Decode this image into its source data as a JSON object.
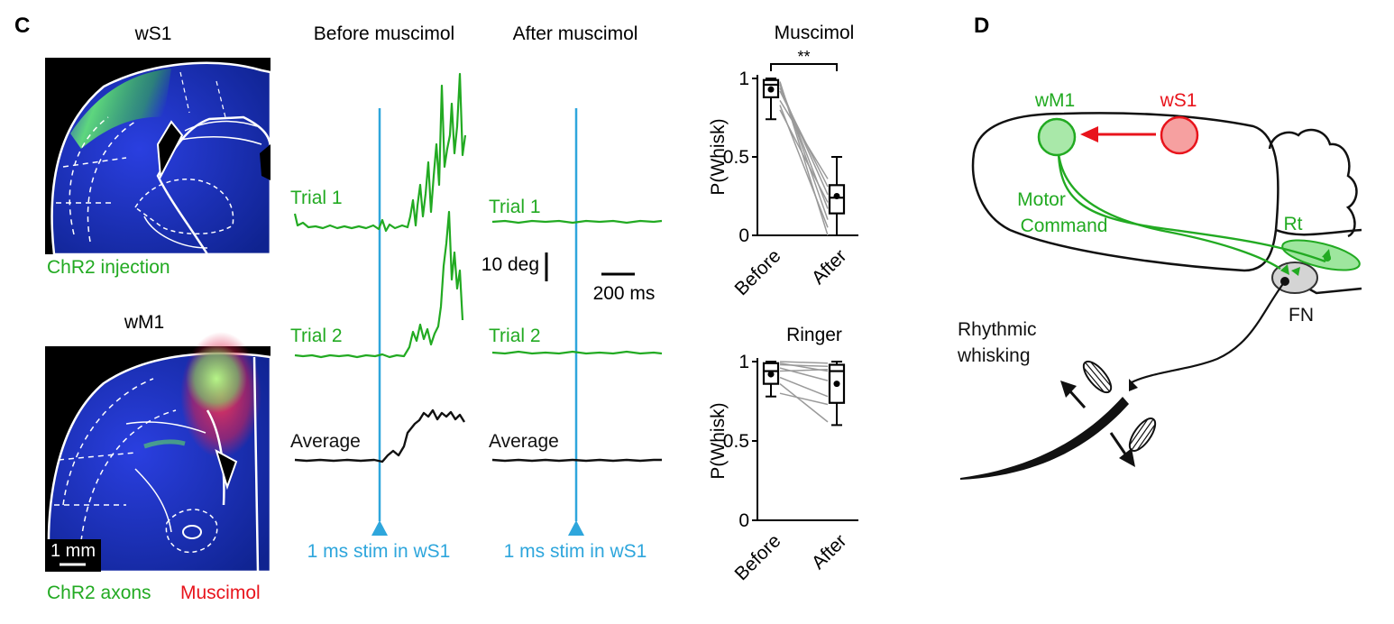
{
  "panel_c": {
    "label": "C",
    "wS1_title": "wS1",
    "wM1_title": "wM1",
    "chr2_injection": "ChR2 injection",
    "scale_bar": "1 mm",
    "chr2_axons": "ChR2 axons",
    "muscimol_label": "Muscimol",
    "before_title": "Before muscimol",
    "after_title": "After muscimol",
    "trial1": "Trial 1",
    "trial2": "Trial 2",
    "average": "Average",
    "scale_deg": "10 deg",
    "scale_ms": "200 ms",
    "stim_label": "1 ms stim in wS1",
    "colors": {
      "green": "#22aa22",
      "blue": "#2ea6dc",
      "red": "#e8141c",
      "black": "#111111"
    }
  },
  "panel_d": {
    "label": "D",
    "wM1": "wM1",
    "wS1": "wS1",
    "motor": "Motor",
    "command": "Command",
    "rt": "Rt",
    "fn": "FN",
    "rhythmic": "Rhythmic",
    "whisking": "whisking"
  },
  "chart_data": [
    {
      "type": "box",
      "title": "Muscimol",
      "ylabel": "P(Whisk)",
      "categories": [
        "Before",
        "After"
      ],
      "ylim": [
        0,
        1
      ],
      "yticks": [
        "0",
        "0.5",
        "1"
      ],
      "significance": "**",
      "box_stats": [
        {
          "category": "Before",
          "min": 0.74,
          "q1": 0.88,
          "median": 0.96,
          "q3": 0.99,
          "max": 1.0,
          "mean": 0.93
        },
        {
          "category": "After",
          "min": 0.0,
          "q1": 0.14,
          "median": 0.24,
          "q3": 0.32,
          "max": 0.5,
          "mean": 0.25
        }
      ],
      "paired_lines": [
        [
          0.98,
          0.0
        ],
        [
          0.97,
          0.1
        ],
        [
          0.96,
          0.17
        ],
        [
          0.94,
          0.26
        ],
        [
          0.92,
          0.31
        ],
        [
          0.86,
          0.36
        ],
        [
          0.83,
          0.05
        ],
        [
          0.8,
          0.21
        ]
      ]
    },
    {
      "type": "box",
      "title": "Ringer",
      "ylabel": "P(Whisk)",
      "categories": [
        "Before",
        "After"
      ],
      "ylim": [
        0,
        1
      ],
      "yticks": [
        "0",
        "0.5",
        "1"
      ],
      "box_stats": [
        {
          "category": "Before",
          "min": 0.78,
          "q1": 0.86,
          "median": 0.94,
          "q3": 0.99,
          "max": 1.0,
          "mean": 0.92
        },
        {
          "category": "After",
          "min": 0.6,
          "q1": 0.74,
          "median": 0.94,
          "q3": 0.98,
          "max": 1.0,
          "mean": 0.86
        }
      ],
      "paired_lines": [
        [
          1.0,
          0.99
        ],
        [
          0.99,
          0.94
        ],
        [
          0.98,
          0.97
        ],
        [
          0.96,
          0.88
        ],
        [
          0.94,
          0.95
        ],
        [
          0.9,
          0.78
        ],
        [
          0.86,
          0.62
        ],
        [
          0.8,
          0.73
        ]
      ]
    }
  ]
}
